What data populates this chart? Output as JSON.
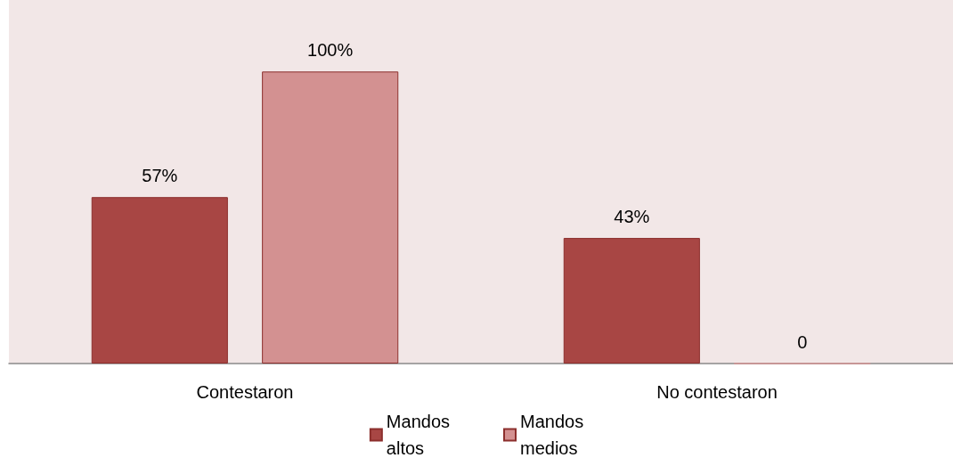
{
  "chart_data": {
    "type": "bar",
    "categories": [
      "Contestaron",
      "No contestaron"
    ],
    "series": [
      {
        "name": "Mandos altos",
        "color": "#a84644",
        "values": [
          57,
          43
        ],
        "value_labels": [
          "57%",
          "43%"
        ]
      },
      {
        "name": "Mandos medios",
        "color": "#d39191",
        "values": [
          100,
          0
        ],
        "value_labels": [
          "100%",
          "0"
        ]
      }
    ],
    "legend": "bottom"
  }
}
